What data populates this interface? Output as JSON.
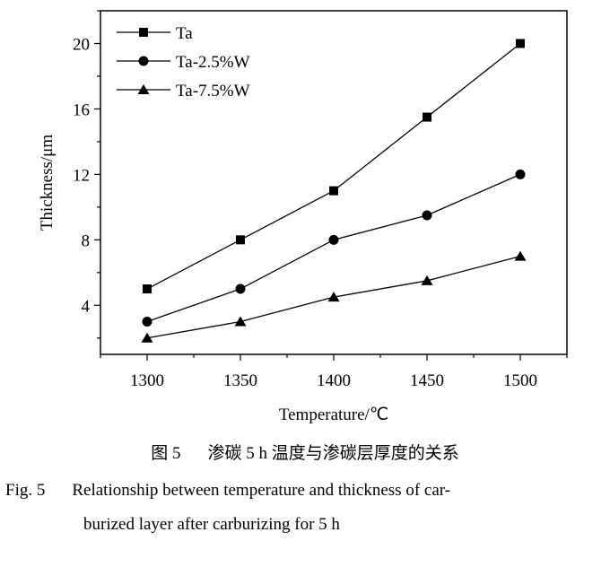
{
  "chart_data": {
    "type": "line",
    "xlabel": "Temperature/℃",
    "ylabel": "Thickness/μm",
    "x": [
      1300,
      1350,
      1400,
      1450,
      1500
    ],
    "xlim": [
      1275,
      1525
    ],
    "ylim": [
      1,
      22
    ],
    "xticks": [
      1300,
      1350,
      1400,
      1450,
      1500
    ],
    "yticks": [
      4,
      8,
      12,
      16,
      20
    ],
    "grid": false,
    "legend_position": "top-left",
    "series": [
      {
        "name": "Ta",
        "marker": "square",
        "values": [
          5,
          8,
          11,
          15.5,
          20
        ]
      },
      {
        "name": "Ta-2.5%W",
        "marker": "circle",
        "values": [
          3,
          5,
          8,
          9.5,
          12
        ]
      },
      {
        "name": "Ta-7.5%W",
        "marker": "triangle",
        "values": [
          2,
          3,
          4.5,
          5.5,
          7
        ]
      }
    ]
  },
  "caption": {
    "cn_label": "图 5",
    "cn_text": "渗碳 5 h 温度与渗碳层厚度的关系",
    "en_label": "Fig. 5",
    "en_line1": "Relationship between temperature and thickness of car-",
    "en_line2": "burized layer after carburizing for 5 h"
  }
}
